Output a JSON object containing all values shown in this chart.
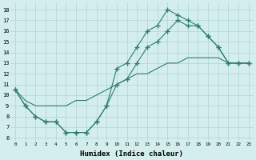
{
  "line1_x": [
    0,
    1,
    2,
    3,
    4,
    5,
    6,
    7,
    8,
    9,
    10,
    11,
    12,
    13,
    14,
    15,
    16,
    17,
    18,
    19,
    20,
    21,
    22,
    23
  ],
  "line1_y": [
    10.5,
    9.0,
    8.0,
    7.5,
    7.5,
    6.5,
    6.5,
    6.5,
    7.5,
    9.0,
    12.5,
    13.0,
    14.5,
    16.0,
    16.5,
    18.0,
    17.5,
    17.0,
    16.5,
    15.5,
    14.5,
    13.0,
    13.0,
    13.0
  ],
  "line2_x": [
    0,
    1,
    2,
    3,
    4,
    5,
    6,
    7,
    8,
    9,
    10,
    11,
    12,
    13,
    14,
    15,
    16,
    17,
    18,
    19,
    20,
    21,
    22,
    23
  ],
  "line2_y": [
    10.5,
    9.0,
    8.0,
    7.5,
    7.5,
    6.5,
    6.5,
    6.5,
    7.5,
    9.0,
    11.0,
    11.5,
    13.0,
    14.5,
    15.0,
    16.0,
    17.0,
    16.5,
    16.5,
    15.5,
    14.5,
    13.0,
    13.0,
    13.0
  ],
  "line3_x": [
    0,
    1,
    2,
    3,
    4,
    5,
    6,
    7,
    8,
    9,
    10,
    11,
    12,
    13,
    14,
    15,
    16,
    17,
    18,
    19,
    20,
    21,
    22,
    23
  ],
  "line3_y": [
    10.5,
    9.5,
    9.0,
    9.0,
    9.0,
    9.0,
    9.5,
    9.5,
    10.0,
    10.5,
    11.0,
    11.5,
    12.0,
    12.0,
    12.5,
    13.0,
    13.0,
    13.5,
    13.5,
    13.5,
    13.5,
    13.0,
    13.0,
    13.0
  ],
  "color": "#2e7d6e",
  "bg_color": "#d4eeee",
  "grid_color": "#aed4d4",
  "xlabel": "Humidex (Indice chaleur)",
  "xlim": [
    -0.5,
    23.5
  ],
  "ylim": [
    5.7,
    18.7
  ],
  "yticks": [
    6,
    7,
    8,
    9,
    10,
    11,
    12,
    13,
    14,
    15,
    16,
    17,
    18
  ],
  "xticks": [
    0,
    1,
    2,
    3,
    4,
    5,
    6,
    7,
    8,
    9,
    10,
    11,
    12,
    13,
    14,
    15,
    16,
    17,
    18,
    19,
    20,
    21,
    22,
    23
  ]
}
